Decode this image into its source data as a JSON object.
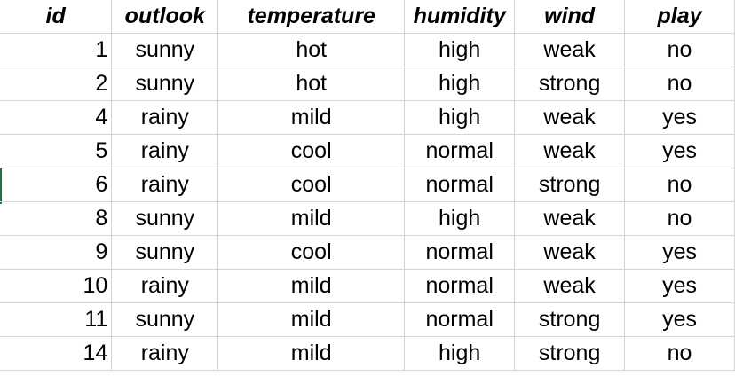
{
  "sheet": {
    "headers": [
      "id",
      "outlook",
      "temperature",
      "humidity",
      "wind",
      "play"
    ],
    "rows": [
      [
        "1",
        "sunny",
        "hot",
        "high",
        "weak",
        "no"
      ],
      [
        "2",
        "sunny",
        "hot",
        "high",
        "strong",
        "no"
      ],
      [
        "4",
        "rainy",
        "mild",
        "high",
        "weak",
        "yes"
      ],
      [
        "5",
        "rainy",
        "cool",
        "normal",
        "weak",
        "yes"
      ],
      [
        "6",
        "rainy",
        "cool",
        "normal",
        "strong",
        "no"
      ],
      [
        "8",
        "sunny",
        "mild",
        "high",
        "weak",
        "no"
      ],
      [
        "9",
        "sunny",
        "cool",
        "normal",
        "weak",
        "yes"
      ],
      [
        "10",
        "rainy",
        "mild",
        "normal",
        "weak",
        "yes"
      ],
      [
        "11",
        "sunny",
        "mild",
        "normal",
        "strong",
        "yes"
      ],
      [
        "14",
        "rainy",
        "mild",
        "high",
        "strong",
        "no"
      ]
    ],
    "colors": {
      "gridline": "#d4d4d4",
      "active_marker": "#217346",
      "text": "#000000"
    }
  }
}
